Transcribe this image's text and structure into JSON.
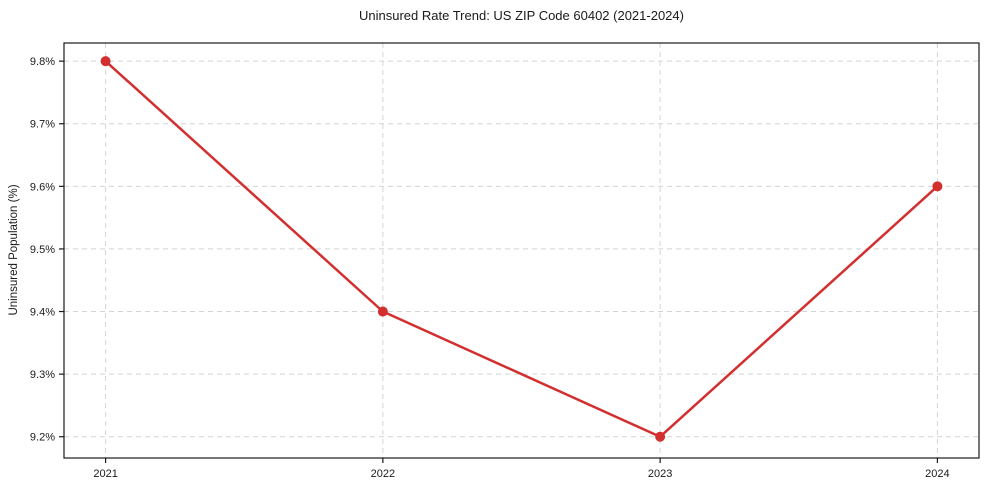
{
  "chart_data": {
    "type": "line",
    "title": "Uninsured Rate Trend: US ZIP Code 60402 (2021-2024)",
    "xlabel": "",
    "ylabel": "Uninsured Population (%)",
    "categories": [
      2021,
      2022,
      2023,
      2024
    ],
    "x_tick_labels": [
      "2021",
      "2022",
      "2023",
      "2024"
    ],
    "values": [
      9.8,
      9.4,
      9.2,
      9.6
    ],
    "y_ticks": [
      9.2,
      9.3,
      9.4,
      9.5,
      9.6,
      9.7,
      9.8
    ],
    "y_tick_labels": [
      "9.2%",
      "9.3%",
      "9.4%",
      "9.5%",
      "9.6%",
      "9.7%",
      "9.8%"
    ],
    "xlim": [
      2020.85,
      2024.15
    ],
    "ylim": [
      9.166,
      9.829
    ],
    "grid": true,
    "legend": "none",
    "line_color": "#d32f2f",
    "marker": "circle",
    "grid_color": "#d4d4d4",
    "axis_color": "#1a1a1a",
    "text_color": "#1a1a1a",
    "background_color": "#ffffff"
  }
}
